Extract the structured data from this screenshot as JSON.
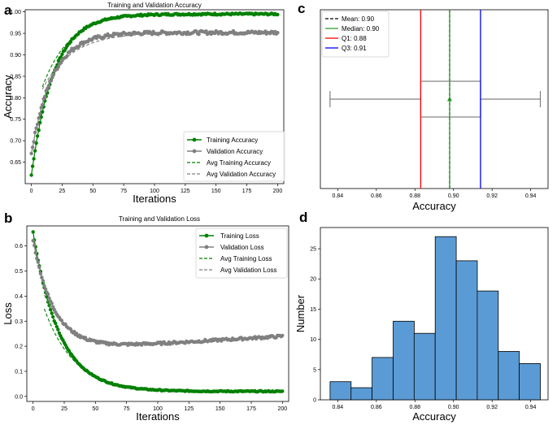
{
  "panels": [
    "a",
    "b",
    "c",
    "d"
  ],
  "chart_data": [
    {
      "id": "a",
      "type": "line",
      "title": "Training and Validation Accuracy",
      "xlabel": "Iterations",
      "ylabel": "Accuracy",
      "xlim": [
        -5,
        205
      ],
      "ylim": [
        0.6,
        1.005
      ],
      "xticks": [
        0,
        25,
        50,
        75,
        100,
        125,
        150,
        175,
        200
      ],
      "yticks": [
        0.65,
        0.7,
        0.75,
        0.8,
        0.85,
        0.9,
        0.95,
        1.0
      ],
      "ytick_labels": [
        "0.65",
        "0.70",
        "0.75",
        "0.80",
        "0.85",
        "0.90",
        "0.95",
        "1.00"
      ],
      "legend_position": "bottom-right",
      "series": [
        {
          "name": "Training Accuracy",
          "color": "#008000",
          "style": "line-marker",
          "curve": {
            "start": 0.62,
            "end": 0.995,
            "tau": 18,
            "noise": 0.002
          },
          "n": 201
        },
        {
          "name": "Validation Accuracy",
          "color": "#808080",
          "style": "line-marker",
          "curve": {
            "start": 0.67,
            "end": 0.952,
            "tau": 17,
            "noise": 0.004
          },
          "n": 201
        },
        {
          "name": "Avg Training Accuracy",
          "color": "#008000",
          "style": "dashed",
          "curve": {
            "start": 0.74,
            "end": 0.995,
            "tau": 22
          },
          "x_range": [
            9,
            200
          ]
        },
        {
          "name": "Avg Validation Accuracy",
          "color": "#808080",
          "style": "dashed",
          "curve": {
            "start": 0.76,
            "end": 0.952,
            "tau": 24
          },
          "x_range": [
            9,
            200
          ]
        }
      ]
    },
    {
      "id": "b",
      "type": "line",
      "title": "Training and Validation Loss",
      "xlabel": "Iterations",
      "ylabel": "Loss",
      "xlim": [
        -5,
        205
      ],
      "ylim": [
        -0.02,
        0.68
      ],
      "xticks": [
        0,
        25,
        50,
        75,
        100,
        125,
        150,
        175,
        200
      ],
      "yticks": [
        0.0,
        0.1,
        0.2,
        0.3,
        0.4,
        0.5,
        0.6
      ],
      "ytick_labels": [
        "0.0",
        "0.1",
        "0.2",
        "0.3",
        "0.4",
        "0.5",
        "0.6"
      ],
      "legend_position": "top-right",
      "series": [
        {
          "name": "Training Loss",
          "color": "#008000",
          "style": "line-marker",
          "curve": {
            "start": 0.655,
            "end": 0.02,
            "tau": 21,
            "noise": 0.002
          },
          "n": 201
        },
        {
          "name": "Validation Loss",
          "color": "#808080",
          "style": "line-marker",
          "curve": {
            "start": 0.625,
            "end": 0.18,
            "tau": 17,
            "noise": 0.005,
            "drift": 0.0003
          },
          "n": 201
        },
        {
          "name": "Avg Training Loss",
          "color": "#008000",
          "style": "dashed",
          "curve": {
            "start": 0.5,
            "end": 0.02,
            "tau": 24
          },
          "x_range": [
            9,
            200
          ]
        },
        {
          "name": "Avg Validation Loss",
          "color": "#808080",
          "style": "dashed",
          "curve": {
            "start": 0.52,
            "end": 0.18,
            "tau": 21,
            "drift": 0.0003
          },
          "x_range": [
            9,
            200
          ]
        }
      ]
    },
    {
      "id": "c",
      "type": "box",
      "title": "",
      "xlabel": "Accuracy",
      "ylabel": "",
      "xlim": [
        0.831,
        0.949
      ],
      "xticks": [
        0.84,
        0.86,
        0.88,
        0.9,
        0.92,
        0.94
      ],
      "xtick_labels": [
        "0.84",
        "0.86",
        "0.88",
        "0.90",
        "0.92",
        "0.94"
      ],
      "box": {
        "whisker_low": 0.836,
        "q1": 0.883,
        "median": 0.898,
        "q3": 0.914,
        "whisker_high": 0.945,
        "mean": 0.898
      },
      "lines": [
        {
          "name": "Mean: 0.90",
          "value": 0.898,
          "color": "#000000",
          "style": "dashed"
        },
        {
          "name": "Median: 0.90",
          "value": 0.898,
          "color": "#2ca02c",
          "style": "solid"
        },
        {
          "name": "Q1: 0.88",
          "value": 0.883,
          "color": "#ff0000",
          "style": "solid"
        },
        {
          "name": "Q3: 0.91",
          "value": 0.914,
          "color": "#0000ff",
          "style": "solid"
        }
      ],
      "legend_position": "top-left"
    },
    {
      "id": "d",
      "type": "bar",
      "title": "",
      "xlabel": "Accuracy",
      "ylabel": "Number",
      "xlim": [
        0.831,
        0.949
      ],
      "ylim": [
        0,
        28.5
      ],
      "xticks": [
        0.84,
        0.86,
        0.88,
        0.9,
        0.92,
        0.94
      ],
      "xtick_labels": [
        "0.84",
        "0.86",
        "0.88",
        "0.90",
        "0.92",
        "0.94"
      ],
      "yticks": [
        0,
        5,
        10,
        15,
        20,
        25
      ],
      "ytick_labels": [
        "0",
        "5",
        "10",
        "15",
        "20",
        "25"
      ],
      "bin_edges": [
        0.836,
        0.8469,
        0.8578,
        0.8687,
        0.8796,
        0.8905,
        0.9014,
        0.9123,
        0.9232,
        0.9341,
        0.945
      ],
      "values": [
        3,
        2,
        7,
        13,
        11,
        27,
        23,
        18,
        8,
        6
      ],
      "color": "#5b9bd5"
    }
  ]
}
